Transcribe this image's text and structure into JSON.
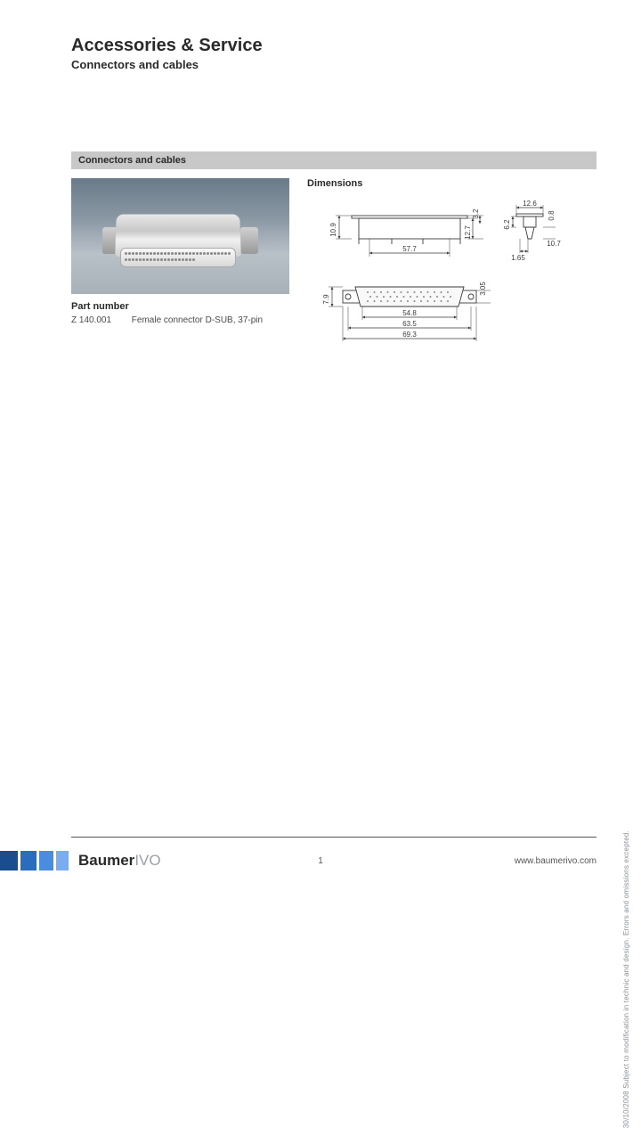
{
  "header": {
    "title": "Accessories & Service",
    "subtitle": "Connectors and cables"
  },
  "section": {
    "bar_title": "Connectors and cables"
  },
  "part": {
    "label": "Part number",
    "number": "Z 140.001",
    "description": "Female connector D-SUB, 37-pin"
  },
  "dimensions": {
    "label": "Dimensions",
    "values": {
      "top_w": "57.7",
      "top_h_left": "10.9",
      "top_inner_h1": "12.7",
      "top_inner_h2": "3.2",
      "bot_w1": "54.8",
      "bot_w2": "63.5",
      "bot_w3": "69.3",
      "bot_h": "7.9",
      "bot_gap": "3.05",
      "side_w": "12.6",
      "side_h1": "0.8",
      "side_h2": "6.2",
      "side_h3": "10.7",
      "side_off": "1.65"
    },
    "stroke": "#3a3a3a",
    "stroke_width": 0.9,
    "font_size": 8
  },
  "footer": {
    "stripes": [
      "#1a4d8f",
      "#2a6dbf",
      "#4a8ddf",
      "#7aadf0"
    ],
    "logo_bold": "Baumer",
    "logo_light": "IVO",
    "page_num": "1",
    "url": "www.baumerivo.com"
  },
  "side_note": "30/10/2008    Subject to modification in technic and design.   Errors and omissions excepted."
}
